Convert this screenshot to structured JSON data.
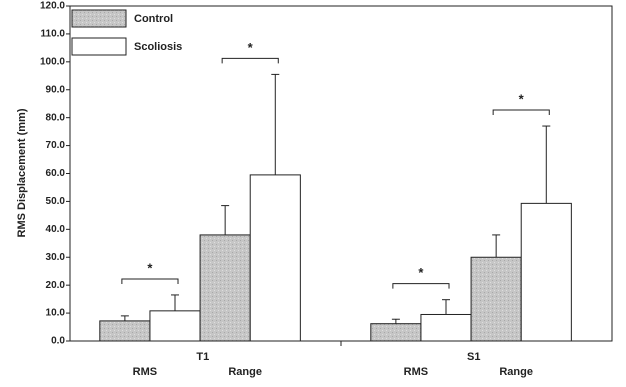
{
  "chart_data": {
    "type": "bar",
    "y_label": "RMS Displacement (mm)",
    "groups": [
      {
        "name": "T1",
        "categories": [
          "RMS",
          "Range"
        ]
      },
      {
        "name": "S1",
        "categories": [
          "RMS",
          "Range"
        ]
      }
    ],
    "series": [
      {
        "name": "Control",
        "color": "#c6c6c6",
        "values": [
          7.2,
          38,
          6.2,
          30
        ],
        "errors": [
          1.8,
          10.5,
          1.6,
          8
        ]
      },
      {
        "name": "Scoliosis",
        "color": "#ffffff",
        "values": [
          10.8,
          59.5,
          9.5,
          49.3
        ],
        "errors": [
          5.7,
          36,
          5.3,
          27.7
        ]
      }
    ],
    "annotations": [
      "*",
      "*",
      "*",
      "*"
    ],
    "ylim": [
      0,
      120
    ],
    "yticks": [
      {
        "value": 0,
        "label": "0.0"
      },
      {
        "value": 10,
        "label": "10.0"
      },
      {
        "value": 20,
        "label": "20.0"
      },
      {
        "value": 30,
        "label": "30.0"
      },
      {
        "value": 40,
        "label": "40.0"
      },
      {
        "value": 50,
        "label": "50.0"
      },
      {
        "value": 60,
        "label": "60.0"
      },
      {
        "value": 70,
        "label": "70.0"
      },
      {
        "value": 80,
        "label": "80.0"
      },
      {
        "value": 90,
        "label": "90.0"
      },
      {
        "value": 100,
        "label": "100.0"
      },
      {
        "value": 110,
        "label": "110.0"
      },
      {
        "value": 120,
        "label": "120.0"
      }
    ],
    "legend": "top-left"
  }
}
